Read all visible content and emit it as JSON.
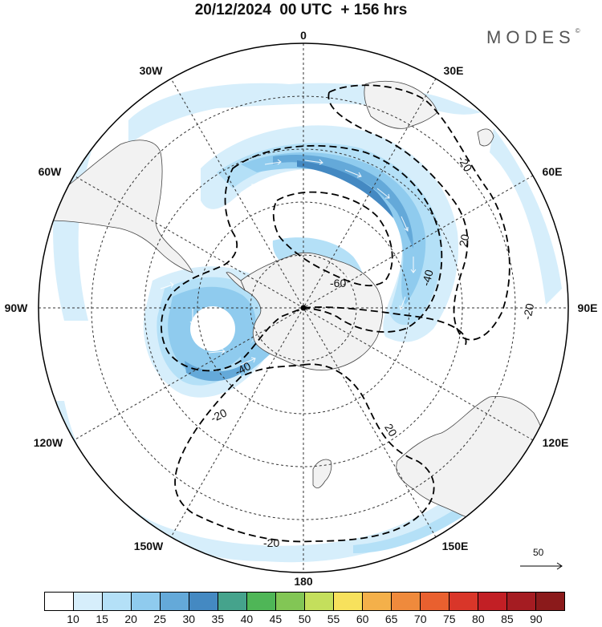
{
  "title": "20/12/2024  00 UTC  + 156 hrs",
  "brand": "MODES",
  "brand_mark": "©",
  "longitude_labels": {
    "lon_0": "0",
    "lon_30e": "30E",
    "lon_60e": "60E",
    "lon_90e": "90E",
    "lon_120e": "120E",
    "lon_150e": "150E",
    "lon_180": "180",
    "lon_150w": "150W",
    "lon_120w": "120W",
    "lon_90w": "90W",
    "lon_60w": "60W",
    "lon_30w": "30W"
  },
  "contour_labels": {
    "c_20_a": "-20",
    "c_20_b": "20",
    "c_20_c": "-20",
    "c_60": "-60",
    "c_40_a": "-40",
    "c_40_b": "-40",
    "c_20_d": "-20",
    "c_20_e": "20",
    "c_20_f": "-20"
  },
  "vector_reference": "50",
  "colorbar": {
    "colors": [
      "#ffffff",
      "#d6eefb",
      "#b4e0f7",
      "#8fcbee",
      "#64a9d9",
      "#4489c2",
      "#45a38c",
      "#4fb657",
      "#82c655",
      "#c4df5c",
      "#f7e15c",
      "#f4b04a",
      "#ef8a3c",
      "#e9602f",
      "#d93629",
      "#c21f25",
      "#a51c22",
      "#8b1a1b"
    ],
    "tick_labels": [
      "10",
      "15",
      "20",
      "25",
      "30",
      "35",
      "40",
      "45",
      "50",
      "55",
      "60",
      "65",
      "70",
      "75",
      "80",
      "85",
      "90"
    ]
  }
}
